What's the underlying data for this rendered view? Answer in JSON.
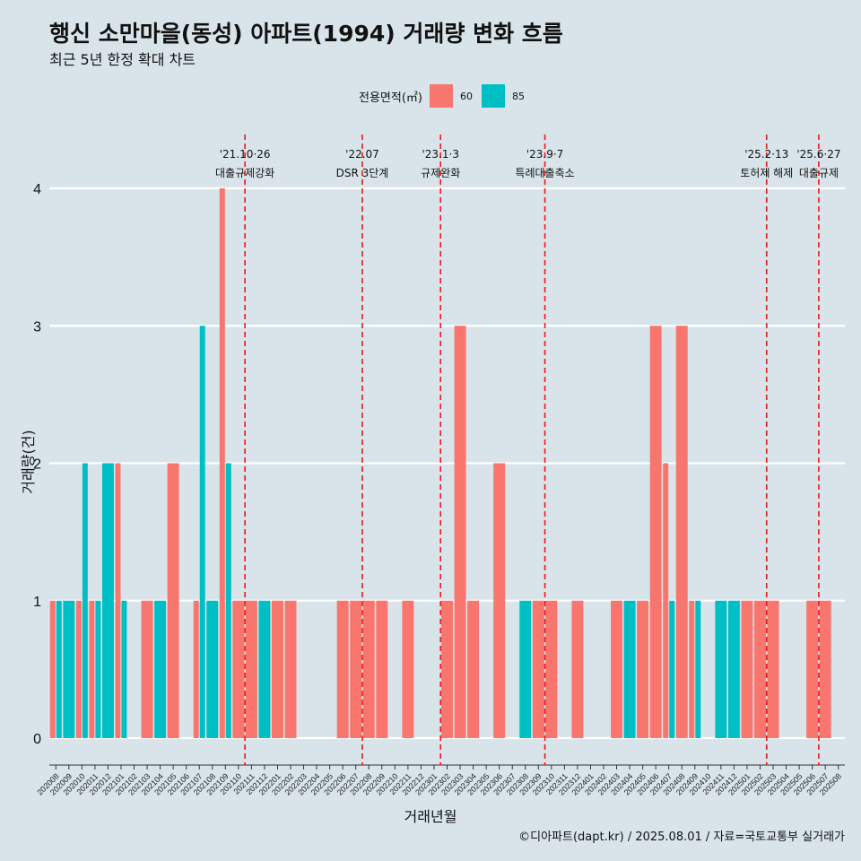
{
  "title": "행신 소만마을(동성) 아파트(1994) 거래량 변화 흐름",
  "subtitle": "최근 5년 한정 확대 차트",
  "footer": "©디아파트(dapt.kr) / 2025.08.01 / 자료=국토교통부 실거래가",
  "legend": {
    "title": "전용면적(㎡)",
    "items": [
      {
        "label": "60",
        "color": "#f8766d"
      },
      {
        "label": "85",
        "color": "#00bfc4"
      }
    ]
  },
  "chart_data": {
    "type": "bar",
    "xlabel": "거래년월",
    "ylabel": "거래량(건)",
    "ylim": [
      0,
      4
    ],
    "yticks": [
      0,
      1,
      2,
      3,
      4
    ],
    "grid": true,
    "legend_position": "top",
    "categories": [
      "202008",
      "202009",
      "202010",
      "202011",
      "202012",
      "202101",
      "202102",
      "202103",
      "202104",
      "202105",
      "202106",
      "202107",
      "202108",
      "202109",
      "202110",
      "202111",
      "202112",
      "202201",
      "202202",
      "202203",
      "202204",
      "202205",
      "202206",
      "202207",
      "202208",
      "202209",
      "202210",
      "202211",
      "202212",
      "202301",
      "202302",
      "202303",
      "202304",
      "202305",
      "202306",
      "202307",
      "202308",
      "202309",
      "202310",
      "202311",
      "202312",
      "202401",
      "202402",
      "202403",
      "202404",
      "202405",
      "202406",
      "202407",
      "202408",
      "202409",
      "202410",
      "202411",
      "202412",
      "202501",
      "202502",
      "202503",
      "202504",
      "202505",
      "202506",
      "202507",
      "202508"
    ],
    "series": [
      {
        "name": "60",
        "color": "#f8766d",
        "values": [
          1,
          0,
          1,
          1,
          0,
          2,
          0,
          1,
          0,
          2,
          0,
          1,
          0,
          4,
          1,
          1,
          0,
          1,
          1,
          0,
          0,
          0,
          1,
          1,
          1,
          1,
          0,
          1,
          0,
          0,
          1,
          3,
          1,
          0,
          2,
          0,
          0,
          1,
          1,
          0,
          1,
          0,
          0,
          1,
          0,
          1,
          3,
          2,
          3,
          1,
          0,
          0,
          0,
          1,
          1,
          1,
          0,
          0,
          1,
          1,
          0
        ]
      },
      {
        "name": "85",
        "color": "#00bfc4",
        "values": [
          1,
          1,
          2,
          1,
          2,
          1,
          0,
          0,
          1,
          0,
          0,
          3,
          1,
          2,
          0,
          0,
          1,
          0,
          0,
          0,
          0,
          0,
          0,
          0,
          0,
          0,
          0,
          0,
          0,
          0,
          0,
          0,
          0,
          0,
          0,
          0,
          1,
          0,
          0,
          0,
          0,
          0,
          0,
          0,
          1,
          0,
          0,
          1,
          0,
          1,
          0,
          1,
          1,
          0,
          0,
          0,
          0,
          0,
          0,
          0,
          0
        ]
      }
    ],
    "annotations": [
      {
        "after": "202110",
        "date": "'21.10·26",
        "text": "대출규제강화"
      },
      {
        "after": "202207",
        "date": "'22.07",
        "text": "DSR 3단계"
      },
      {
        "after": "202301",
        "date": "'23.1·3",
        "text": "규제완화"
      },
      {
        "after": "202309",
        "date": "'23.9·7",
        "text": "특례대출축소"
      },
      {
        "after": "202502",
        "date": "'25.2·13",
        "text": "토허제 해제"
      },
      {
        "after": "202506",
        "date": "'25.6·27",
        "text": "대출규제"
      }
    ]
  }
}
